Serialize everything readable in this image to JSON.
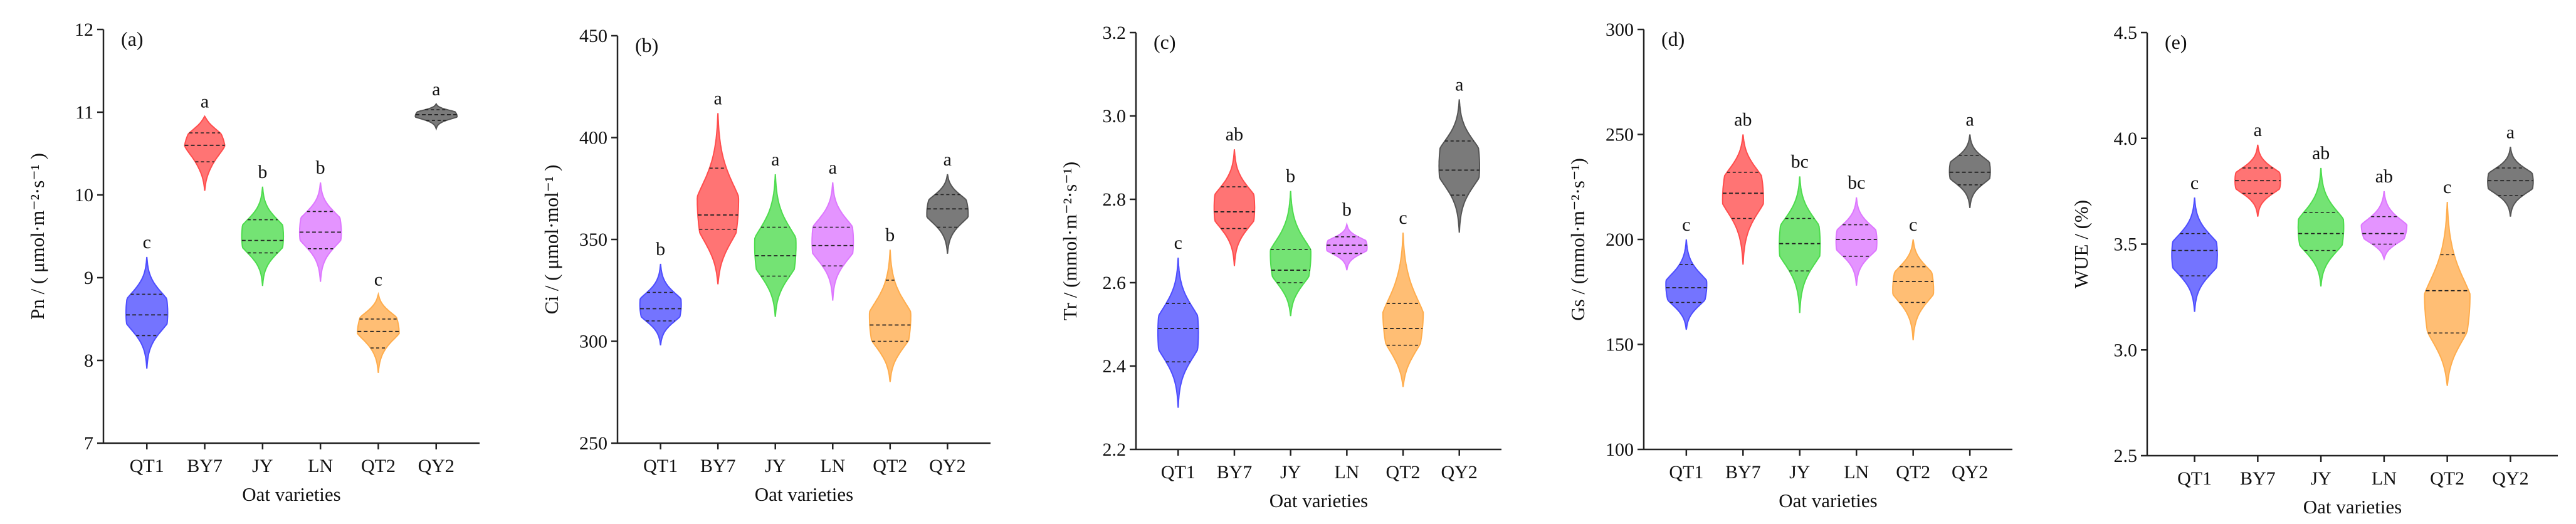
{
  "colors": {
    "QT1": "#4d4dff",
    "BY7": "#ff4d4d",
    "JY": "#4ddc4d",
    "LN": "#dd77ff",
    "QT2": "#ffad4d",
    "QY2": "#555555"
  },
  "chart_data": [
    {
      "type": "violin",
      "panel_label": "(a)",
      "ylabel": "Pn / ( μmol·m⁻²·s⁻¹ )",
      "xlabel": "Oat varieties",
      "ylim": [
        7,
        12
      ],
      "yticks": [
        7,
        8,
        9,
        10,
        11,
        12
      ],
      "ytick_labels": [
        "7",
        "8",
        "9",
        "10",
        "11",
        "12"
      ],
      "categories": [
        "QT1",
        "BY7",
        "JY",
        "LN",
        "QT2",
        "QY2"
      ],
      "series": [
        {
          "name": "QT1",
          "min": 7.9,
          "q1": 8.3,
          "median": 8.55,
          "q3": 8.8,
          "max": 9.25,
          "peak": 8.6,
          "sig": "c"
        },
        {
          "name": "BY7",
          "min": 10.05,
          "q1": 10.4,
          "median": 10.6,
          "q3": 10.75,
          "max": 10.95,
          "peak": 10.7,
          "sig": "a"
        },
        {
          "name": "JY",
          "min": 8.9,
          "q1": 9.3,
          "median": 9.45,
          "q3": 9.7,
          "max": 10.1,
          "peak": 9.5,
          "sig": "b"
        },
        {
          "name": "LN",
          "min": 8.95,
          "q1": 9.35,
          "median": 9.55,
          "q3": 9.8,
          "max": 10.15,
          "peak": 9.6,
          "sig": "b"
        },
        {
          "name": "QT2",
          "min": 7.85,
          "q1": 8.15,
          "median": 8.35,
          "q3": 8.5,
          "max": 8.8,
          "peak": 8.45,
          "sig": "c"
        },
        {
          "name": "QY2",
          "min": 10.8,
          "q1": 10.9,
          "median": 10.97,
          "q3": 11.03,
          "max": 11.1,
          "peak": 10.98,
          "sig": "a"
        }
      ]
    },
    {
      "type": "violin",
      "panel_label": "(b)",
      "ylabel": "Ci / ( μmol·mol⁻¹ )",
      "xlabel": "Oat varieties",
      "ylim": [
        250,
        450
      ],
      "yticks": [
        250,
        300,
        350,
        400,
        450
      ],
      "ytick_labels": [
        "250",
        "300",
        "350",
        "400",
        "450"
      ],
      "categories": [
        "QT1",
        "BY7",
        "JY",
        "LN",
        "QT2",
        "QY2"
      ],
      "series": [
        {
          "name": "QT1",
          "min": 298,
          "q1": 310,
          "median": 316,
          "q3": 324,
          "max": 338,
          "peak": 316,
          "sig": "b"
        },
        {
          "name": "BY7",
          "min": 328,
          "q1": 355,
          "median": 362,
          "q3": 385,
          "max": 412,
          "peak": 360,
          "sig": "a"
        },
        {
          "name": "JY",
          "min": 312,
          "q1": 332,
          "median": 342,
          "q3": 356,
          "max": 382,
          "peak": 342,
          "sig": "a"
        },
        {
          "name": "LN",
          "min": 320,
          "q1": 337,
          "median": 347,
          "q3": 356,
          "max": 378,
          "peak": 350,
          "sig": "a"
        },
        {
          "name": "QT2",
          "min": 280,
          "q1": 300,
          "median": 308,
          "q3": 330,
          "max": 345,
          "peak": 306,
          "sig": "b"
        },
        {
          "name": "QY2",
          "min": 343,
          "q1": 356,
          "median": 365,
          "q3": 372,
          "max": 382,
          "peak": 366,
          "sig": "a"
        }
      ]
    },
    {
      "type": "violin",
      "panel_label": "(c)",
      "ylabel": "Tr / (mmol·m⁻²·s⁻¹)",
      "xlabel": "Oat varieties",
      "ylim": [
        2.2,
        3.2
      ],
      "yticks": [
        2.2,
        2.4,
        2.6,
        2.8,
        3.0,
        3.2
      ],
      "ytick_labels": [
        "2.2",
        "2.4",
        "2.6",
        "2.8",
        "3.0",
        "3.2"
      ],
      "categories": [
        "QT1",
        "BY7",
        "JY",
        "LN",
        "QT2",
        "QY2"
      ],
      "series": [
        {
          "name": "QT1",
          "min": 2.3,
          "q1": 2.41,
          "median": 2.49,
          "q3": 2.55,
          "max": 2.66,
          "peak": 2.48,
          "sig": "c"
        },
        {
          "name": "BY7",
          "min": 2.64,
          "q1": 2.73,
          "median": 2.77,
          "q3": 2.83,
          "max": 2.92,
          "peak": 2.78,
          "sig": "ab"
        },
        {
          "name": "JY",
          "min": 2.52,
          "q1": 2.6,
          "median": 2.63,
          "q3": 2.68,
          "max": 2.82,
          "peak": 2.64,
          "sig": "b"
        },
        {
          "name": "LN",
          "min": 2.63,
          "q1": 2.67,
          "median": 2.69,
          "q3": 2.71,
          "max": 2.74,
          "peak": 2.69,
          "sig": "b"
        },
        {
          "name": "QT2",
          "min": 2.35,
          "q1": 2.45,
          "median": 2.49,
          "q3": 2.55,
          "max": 2.72,
          "peak": 2.48,
          "sig": "c"
        },
        {
          "name": "QY2",
          "min": 2.72,
          "q1": 2.81,
          "median": 2.87,
          "q3": 2.94,
          "max": 3.04,
          "peak": 2.89,
          "sig": "a"
        }
      ]
    },
    {
      "type": "violin",
      "panel_label": "(d)",
      "ylabel": "Gs / (mmol·m⁻²·s⁻¹)",
      "xlabel": "Oat varieties",
      "ylim": [
        100,
        300
      ],
      "yticks": [
        100,
        150,
        200,
        250,
        300
      ],
      "ytick_labels": [
        "100",
        "150",
        "200",
        "250",
        "300"
      ],
      "categories": [
        "QT1",
        "BY7",
        "JY",
        "LN",
        "QT2",
        "QY2"
      ],
      "series": [
        {
          "name": "QT1",
          "min": 157,
          "q1": 170,
          "median": 177,
          "q3": 188,
          "max": 200,
          "peak": 175,
          "sig": "c"
        },
        {
          "name": "BY7",
          "min": 188,
          "q1": 210,
          "median": 222,
          "q3": 232,
          "max": 250,
          "peak": 225,
          "sig": "ab"
        },
        {
          "name": "JY",
          "min": 165,
          "q1": 185,
          "median": 198,
          "q3": 210,
          "max": 230,
          "peak": 200,
          "sig": "bc"
        },
        {
          "name": "LN",
          "min": 178,
          "q1": 192,
          "median": 200,
          "q3": 207,
          "max": 220,
          "peak": 200,
          "sig": "bc"
        },
        {
          "name": "QT2",
          "min": 152,
          "q1": 170,
          "median": 180,
          "q3": 187,
          "max": 200,
          "peak": 180,
          "sig": "c"
        },
        {
          "name": "QY2",
          "min": 215,
          "q1": 226,
          "median": 232,
          "q3": 240,
          "max": 250,
          "peak": 233,
          "sig": "a"
        }
      ]
    },
    {
      "type": "violin",
      "panel_label": "(e)",
      "ylabel": "WUE / (%)",
      "xlabel": "Oat varieties",
      "ylim": [
        2.5,
        4.5
      ],
      "yticks": [
        2.5,
        3.0,
        3.5,
        4.0,
        4.5
      ],
      "ytick_labels": [
        "2.5",
        "3.0",
        "3.5",
        "4.0",
        "4.5"
      ],
      "categories": [
        "QT1",
        "BY7",
        "JY",
        "LN",
        "QT2",
        "QY2"
      ],
      "series": [
        {
          "name": "QT1",
          "min": 3.18,
          "q1": 3.35,
          "median": 3.47,
          "q3": 3.55,
          "max": 3.72,
          "peak": 3.45,
          "sig": "c"
        },
        {
          "name": "BY7",
          "min": 3.63,
          "q1": 3.74,
          "median": 3.8,
          "q3": 3.86,
          "max": 3.97,
          "peak": 3.8,
          "sig": "a"
        },
        {
          "name": "JY",
          "min": 3.3,
          "q1": 3.47,
          "median": 3.55,
          "q3": 3.65,
          "max": 3.86,
          "peak": 3.55,
          "sig": "ab"
        },
        {
          "name": "LN",
          "min": 3.43,
          "q1": 3.5,
          "median": 3.55,
          "q3": 3.63,
          "max": 3.75,
          "peak": 3.55,
          "sig": "ab"
        },
        {
          "name": "QT2",
          "min": 2.83,
          "q1": 3.08,
          "median": 3.28,
          "q3": 3.45,
          "max": 3.7,
          "peak": 3.15,
          "sig": "c"
        },
        {
          "name": "QY2",
          "min": 3.63,
          "q1": 3.73,
          "median": 3.8,
          "q3": 3.86,
          "max": 3.96,
          "peak": 3.8,
          "sig": "a"
        }
      ]
    }
  ]
}
